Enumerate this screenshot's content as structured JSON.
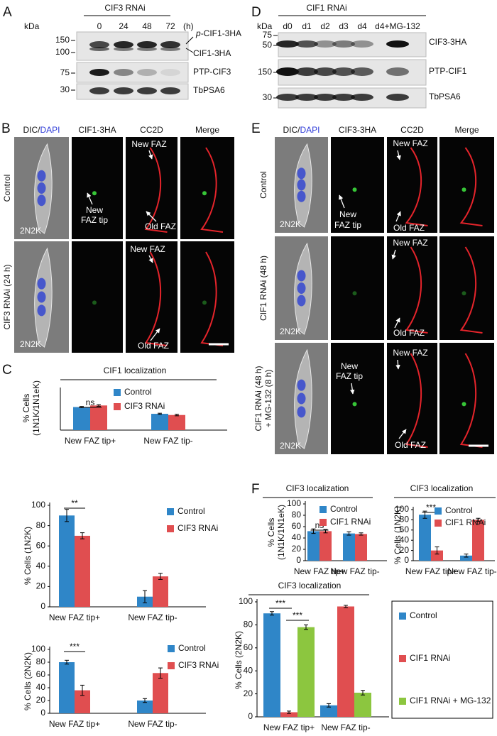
{
  "panels": {
    "A": {
      "label": "A",
      "title": "CIF3 RNAi",
      "lanes": [
        "0",
        "24",
        "48",
        "72"
      ],
      "unit": "(h)",
      "kda": "kDa",
      "markers": [
        "150",
        "100",
        "75",
        "30"
      ],
      "phospho": {
        "prefix": "p",
        "text": "-CIF1-3HA"
      },
      "bands": [
        "CIF1-3HA",
        "PTP-CIF3",
        "TbPSA6"
      ]
    },
    "D": {
      "label": "D",
      "title": "CIF1 RNAi",
      "lanes": [
        "d0",
        "d1",
        "d2",
        "d3",
        "d4",
        "d4+MG-132"
      ],
      "kda": "kDa",
      "markers": [
        "75",
        "50",
        "150",
        "30"
      ],
      "bands": [
        "CIF3-3HA",
        "PTP-CIF1",
        "TbPSA6"
      ]
    },
    "B": {
      "label": "B",
      "stain": [
        "DIC/",
        "DAPI"
      ],
      "headers": [
        "CIF1-3HA",
        "CC2D",
        "Merge"
      ],
      "rows": [
        {
          "label": [
            "Control"
          ],
          "notes": [
            "New",
            "FAZ tip",
            "New FAZ",
            "Old FAZ"
          ],
          "cell": "2N2K"
        },
        {
          "label": [
            "CIF3 RNAi (24 h)"
          ],
          "notes": [
            "New FAZ",
            "Old FAZ"
          ],
          "cell": "2N2K"
        }
      ]
    },
    "E": {
      "label": "E",
      "stain": [
        "DIC/",
        "DAPI"
      ],
      "headers": [
        "CIF3-3HA",
        "CC2D",
        "Merge"
      ],
      "rows": [
        {
          "label": [
            "Control"
          ],
          "notes": [
            "New",
            "FAZ tip",
            "New FAZ",
            "Old FAZ"
          ],
          "cell": "2N2K"
        },
        {
          "label": [
            "CIF1 RNAi (48 h)"
          ],
          "notes": [
            "New FAZ",
            "Old FAZ"
          ],
          "cell": "2N2K"
        },
        {
          "label": [
            "CIF1 RNAi (48 h)",
            "+ MG-132 (8 h)"
          ],
          "notes": [
            "New",
            "FAZ tip",
            "New FAZ",
            "Old FAZ"
          ],
          "cell": "2N2K"
        }
      ]
    },
    "C": {
      "label": "C"
    },
    "F": {
      "label": "F"
    }
  },
  "chart_data": [
    {
      "type": "bar",
      "title": "CIF1 localization",
      "ylabel": [
        "% Cells",
        "(1N1K/1N1eK)"
      ],
      "categories": [
        "New FAZ tip+",
        "New FAZ tip-"
      ],
      "series": [
        {
          "name": "Control",
          "color": "#2f86c8",
          "values": [
            58,
            41
          ],
          "errors": [
            1.5,
            1.5
          ]
        },
        {
          "name": "CIF3 RNAi",
          "color": "#e04e50",
          "values": [
            62,
            38
          ],
          "errors": [
            2,
            2
          ]
        }
      ],
      "ylim": [
        0,
        100
      ],
      "annotations": [
        "ns"
      ]
    },
    {
      "type": "bar",
      "ylabel": [
        "% Cells (1N2K)"
      ],
      "categories": [
        "New FAZ tip+",
        "New FAZ tip-"
      ],
      "series": [
        {
          "name": "Control",
          "color": "#2f86c8",
          "values": [
            90,
            10
          ],
          "errors": [
            6,
            6
          ]
        },
        {
          "name": "CIF3 RNAi",
          "color": "#e04e50",
          "values": [
            70,
            30
          ],
          "errors": [
            3,
            3
          ]
        }
      ],
      "ylim": [
        0,
        100
      ],
      "yticks": [
        0,
        20,
        40,
        60,
        80,
        100
      ],
      "annotations": [
        "**"
      ]
    },
    {
      "type": "bar",
      "ylabel": [
        "% Cells (2N2K)"
      ],
      "categories": [
        "New FAZ tip+",
        "New FAZ tip-"
      ],
      "series": [
        {
          "name": "Control",
          "color": "#2f86c8",
          "values": [
            80,
            20
          ],
          "errors": [
            3,
            3
          ]
        },
        {
          "name": "CIF3 RNAi",
          "color": "#e04e50",
          "values": [
            36,
            63
          ],
          "errors": [
            8,
            8
          ]
        }
      ],
      "ylim": [
        0,
        100
      ],
      "yticks": [
        0,
        20,
        40,
        60,
        80,
        100
      ],
      "annotations": [
        "***"
      ]
    },
    {
      "type": "bar",
      "title": "CIF3 localization",
      "ylabel": [
        "% Cells",
        "(1N1K/1N1eK)"
      ],
      "categories": [
        "New FAZ tip+",
        "New FAZ tip-"
      ],
      "series": [
        {
          "name": "Control",
          "color": "#2f86c8",
          "values": [
            52,
            48
          ],
          "errors": [
            4,
            3
          ]
        },
        {
          "name": "CIF1 RNAi",
          "color": "#e04e50",
          "values": [
            52,
            47
          ],
          "errors": [
            3,
            2
          ]
        }
      ],
      "ylim": [
        0,
        100
      ],
      "yticks": [
        0,
        20,
        40,
        60,
        80,
        100
      ],
      "annotations": [
        "ns"
      ]
    },
    {
      "type": "bar",
      "title": "CIF3 localization",
      "ylabel": [
        "% Cells (1N2K)"
      ],
      "categories": [
        "New FAZ tip+",
        "New FAZ tip-"
      ],
      "series": [
        {
          "name": "Control",
          "color": "#2f86c8",
          "values": [
            90,
            10
          ],
          "errors": [
            7,
            3
          ]
        },
        {
          "name": "CIF1 RNAi",
          "color": "#e04e50",
          "values": [
            20,
            80
          ],
          "errors": [
            7,
            3
          ]
        }
      ],
      "ylim": [
        0,
        100
      ],
      "yticks": [
        0,
        20,
        40,
        60,
        80,
        100
      ],
      "annotations": [
        "***"
      ]
    },
    {
      "type": "bar",
      "title": "CIF3 localization",
      "ylabel": [
        "% Cells (2N2K)"
      ],
      "categories": [
        "New FAZ tip+",
        "New FAZ tip-"
      ],
      "series": [
        {
          "name": "Control",
          "color": "#2f86c8",
          "values": [
            90,
            10
          ],
          "errors": [
            1.5,
            1.5
          ]
        },
        {
          "name": "CIF1 RNAi",
          "color": "#e04e50",
          "values": [
            4,
            96
          ],
          "errors": [
            1,
            1
          ]
        },
        {
          "name": "CIF1 RNAi + MG-132",
          "color": "#8cc63f",
          "values": [
            78,
            21
          ],
          "errors": [
            2,
            2
          ]
        }
      ],
      "ylim": [
        0,
        100
      ],
      "yticks": [
        0,
        20,
        40,
        60,
        80,
        100
      ],
      "annotations": [
        "***",
        "***"
      ]
    }
  ]
}
